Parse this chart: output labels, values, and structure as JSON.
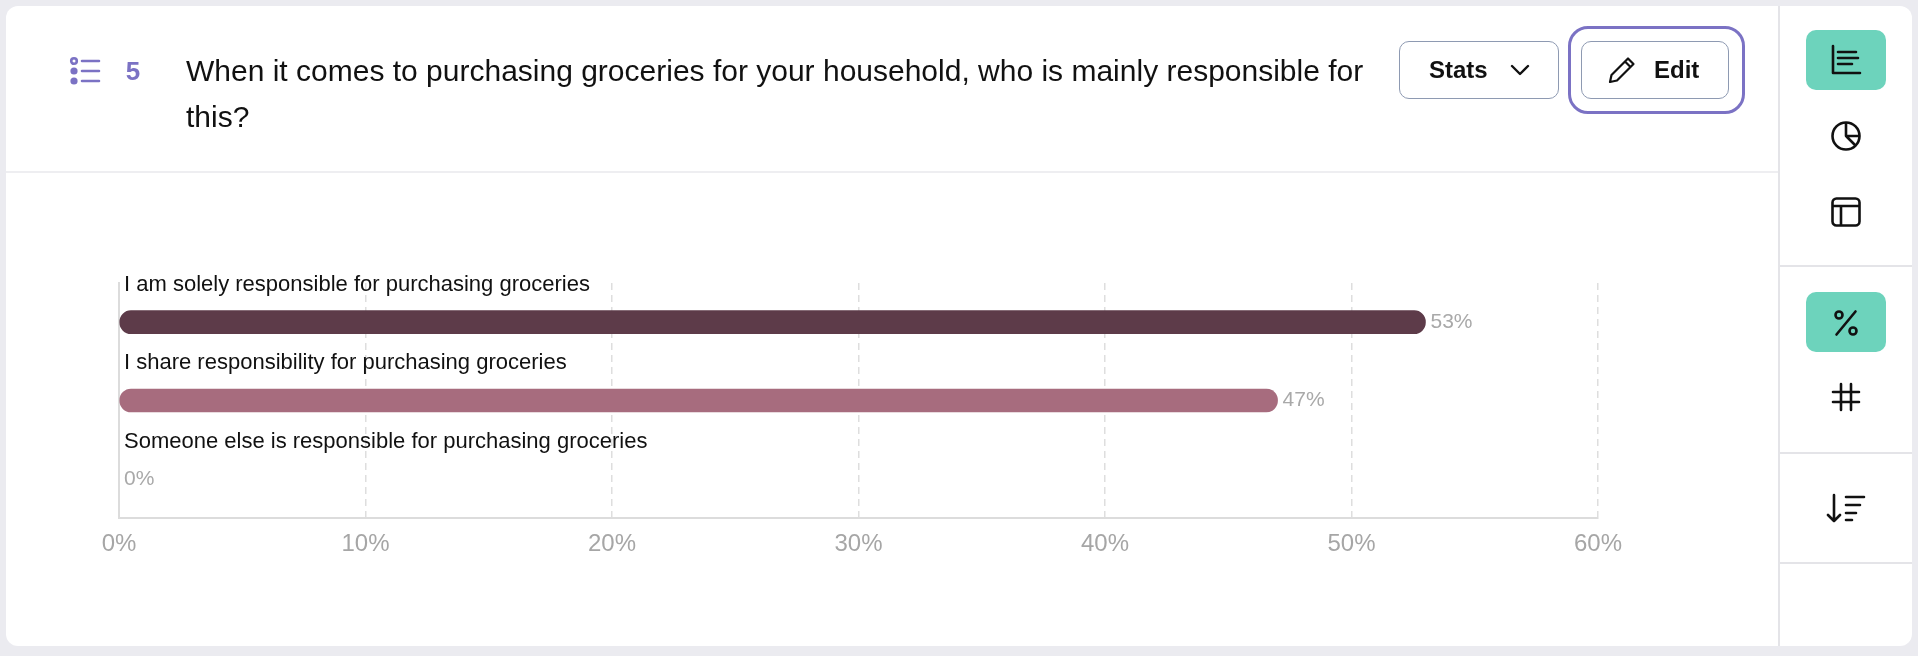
{
  "chart_data": {
    "type": "bar",
    "orientation": "horizontal",
    "title": "When it comes to purchasing groceries for your household, who is mainly responsible for this?",
    "categories": [
      "I am solely responsible for purchasing groceries",
      "I share responsibility for purchasing groceries",
      "Someone else is responsible for purchasing groceries"
    ],
    "values": [
      53,
      47,
      0
    ],
    "colors": [
      "#5d3b49",
      "#a76c7e",
      null
    ],
    "value_labels": [
      "53%",
      "47%",
      "0%"
    ],
    "xlim": [
      0,
      60
    ],
    "xticks": [
      {
        "value": 0,
        "label": "0%"
      },
      {
        "value": 10,
        "label": "10%"
      },
      {
        "value": 20,
        "label": "20%"
      },
      {
        "value": 30,
        "label": "30%"
      },
      {
        "value": 40,
        "label": "40%"
      },
      {
        "value": 50,
        "label": "50%"
      },
      {
        "value": 60,
        "label": "60%"
      }
    ],
    "grid": "x",
    "annotations": [
      "5",
      "Stats",
      "Edit"
    ]
  }
}
